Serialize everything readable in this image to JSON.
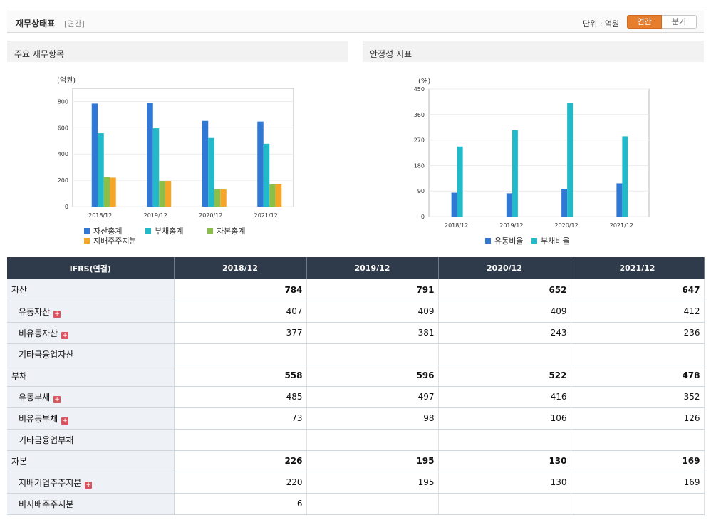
{
  "header": {
    "title": "재무상태표",
    "subtitle": "[연간]",
    "unit_label": "단위 : 억원",
    "toggle_annual": "연간",
    "toggle_quarter": "분기"
  },
  "panels": {
    "left_title": "주요 재무항목",
    "right_title": "안정성 지표"
  },
  "colors": {
    "blue": "#2f78d6",
    "teal": "#22b9c9",
    "green": "#8cbf4a",
    "orange": "#f5a628",
    "accent": "#e67e2e"
  },
  "chart_data": [
    {
      "type": "bar",
      "title": "주요 재무항목",
      "ylabel": "(억원)",
      "ylim": [
        0,
        900
      ],
      "yticks": [
        0,
        200,
        400,
        600,
        800
      ],
      "categories": [
        "2018/12",
        "2019/12",
        "2020/12",
        "2021/12"
      ],
      "series": [
        {
          "name": "자산총계",
          "color": "#2f78d6",
          "values": [
            784,
            791,
            652,
            647
          ]
        },
        {
          "name": "부채총계",
          "color": "#22b9c9",
          "values": [
            558,
            596,
            522,
            478
          ]
        },
        {
          "name": "자본총계",
          "color": "#8cbf4a",
          "values": [
            226,
            195,
            130,
            169
          ]
        },
        {
          "name": "지배주주지분",
          "color": "#f5a628",
          "values": [
            220,
            195,
            130,
            169
          ]
        }
      ]
    },
    {
      "type": "bar",
      "title": "안정성 지표",
      "ylabel": "(%)",
      "ylim": [
        0,
        450
      ],
      "yticks": [
        0,
        90,
        180,
        270,
        360,
        450
      ],
      "categories": [
        "2018/12",
        "2019/12",
        "2020/12",
        "2021/12"
      ],
      "series": [
        {
          "name": "유동비율",
          "color": "#2f78d6",
          "values": [
            84,
            82,
            98,
            117
          ]
        },
        {
          "name": "부채비율",
          "color": "#22b9c9",
          "values": [
            247,
            305,
            402,
            283
          ]
        }
      ]
    }
  ],
  "table": {
    "corner": "IFRS(연결)",
    "columns": [
      "2018/12",
      "2019/12",
      "2020/12",
      "2021/12"
    ],
    "rows": [
      {
        "label": "자산",
        "main": true,
        "values": [
          "784",
          "791",
          "652",
          "647"
        ]
      },
      {
        "label": "유동자산",
        "plus": true,
        "values": [
          "407",
          "409",
          "409",
          "412"
        ]
      },
      {
        "label": "비유동자산",
        "plus": true,
        "values": [
          "377",
          "381",
          "243",
          "236"
        ]
      },
      {
        "label": "기타금융업자산",
        "values": [
          "",
          "",
          "",
          ""
        ]
      },
      {
        "label": "부채",
        "main": true,
        "values": [
          "558",
          "596",
          "522",
          "478"
        ]
      },
      {
        "label": "유동부채",
        "plus": true,
        "values": [
          "485",
          "497",
          "416",
          "352"
        ]
      },
      {
        "label": "비유동부채",
        "plus": true,
        "values": [
          "73",
          "98",
          "106",
          "126"
        ]
      },
      {
        "label": "기타금융업부채",
        "values": [
          "",
          "",
          "",
          ""
        ]
      },
      {
        "label": "자본",
        "main": true,
        "values": [
          "226",
          "195",
          "130",
          "169"
        ]
      },
      {
        "label": "지배기업주주지분",
        "plus": true,
        "values": [
          "220",
          "195",
          "130",
          "169"
        ]
      },
      {
        "label": "비지배주주지분",
        "values": [
          "6",
          "",
          "",
          ""
        ]
      }
    ]
  }
}
